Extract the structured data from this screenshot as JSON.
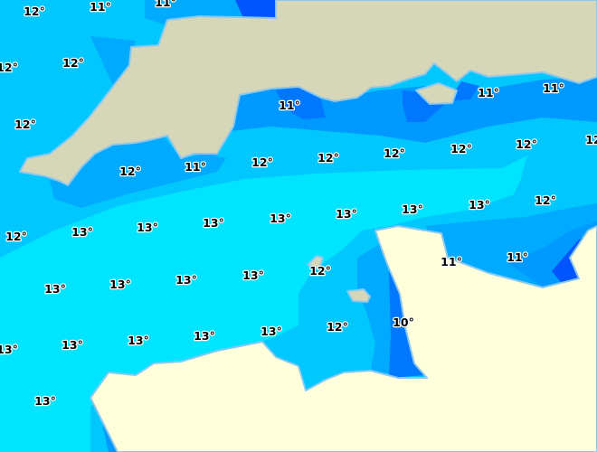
{
  "map": {
    "type": "sea-surface-temperature",
    "unit": "°C",
    "colors": {
      "zone_13": "#00e5ff",
      "zone_12": "#00c8ff",
      "zone_11_12": "#00b0ff",
      "zone_11": "#0099ff",
      "zone_10": "#0077ff",
      "zone_cold": "#0055ff",
      "land_uk": "#d6d6b8",
      "land_france": "#ffffdc",
      "coastline": "#8cc8ee"
    },
    "labels": [
      "12°",
      "11°",
      "11°",
      "12°",
      "12°",
      "12°",
      "11°",
      "11°",
      "11°",
      "12°",
      "11°",
      "12°",
      "12°",
      "12°",
      "12°",
      "12°",
      "12",
      "12°",
      "13°",
      "13°",
      "13°",
      "13°",
      "13°",
      "13°",
      "13°",
      "12°",
      "11°",
      "11°",
      "12°",
      "13°",
      "13°",
      "13°",
      "13°",
      "12°",
      "10°",
      "13°",
      "13°",
      "13°",
      "13°",
      "13°",
      "13°"
    ]
  }
}
